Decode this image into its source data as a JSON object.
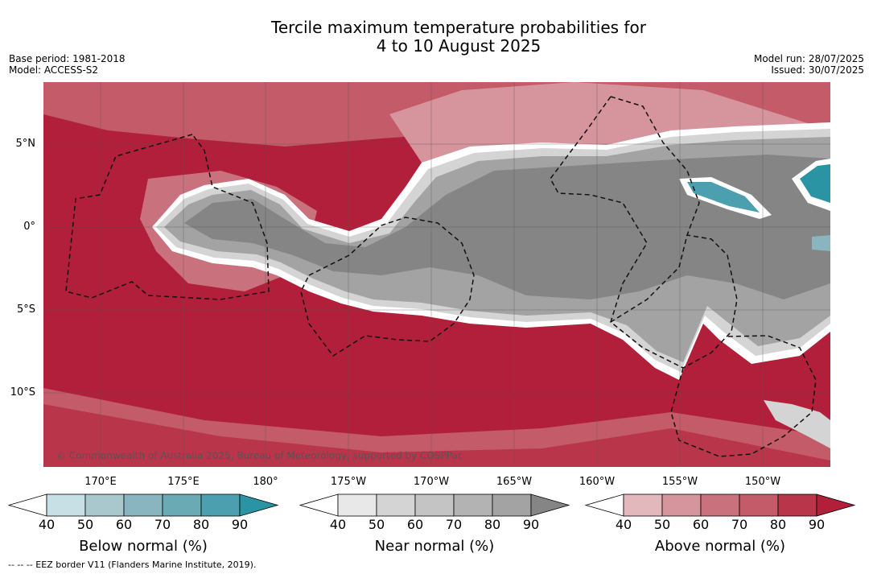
{
  "title_line1": "Tercile maximum temperature probabilities for",
  "title_line2": "4 to 10 August 2025",
  "base_period": "Base period: 1981-2018",
  "model": "Model: ACCESS-S2",
  "model_run": "Model run: 28/07/2025",
  "issued": "Issued: 30/07/2025",
  "copyright": "© Commonwealth of Australia 2025, Bureau of Meteorology, supported by COSPPac",
  "footnote": "-- -- -- EEZ border V11 (Flanders Marine Institute, 2019).",
  "lat_labels": [
    "5°N",
    "0°",
    "5°S",
    "10°S"
  ],
  "lon_labels": [
    "170°E",
    "175°E",
    "180°",
    "175°W",
    "170°W",
    "165°W",
    "160°W",
    "155°W",
    "150°W"
  ],
  "colors": {
    "below": [
      "#ffffff",
      "#c7e0e6",
      "#a8c8ce",
      "#88b5bf",
      "#6aaab5",
      "#4c9fae",
      "#2b94a4"
    ],
    "near": [
      "#ffffff",
      "#e8e8e8",
      "#d4d4d4",
      "#c4c4c4",
      "#b3b3b3",
      "#a3a3a3",
      "#858585"
    ],
    "above": [
      "#ffffff",
      "#e3b8bd",
      "#d6949d",
      "#c9727e",
      "#c35b68",
      "#b9364a",
      "#b21f3a"
    ]
  },
  "colorbars": [
    {
      "label": "Below normal (%)",
      "ticks": [
        "40",
        "50",
        "60",
        "70",
        "80",
        "90"
      ]
    },
    {
      "label": "Near normal (%)",
      "ticks": [
        "40",
        "50",
        "60",
        "70",
        "80",
        "90"
      ]
    },
    {
      "label": "Above normal (%)",
      "ticks": [
        "40",
        "50",
        "60",
        "70",
        "80",
        "90"
      ]
    }
  ]
}
